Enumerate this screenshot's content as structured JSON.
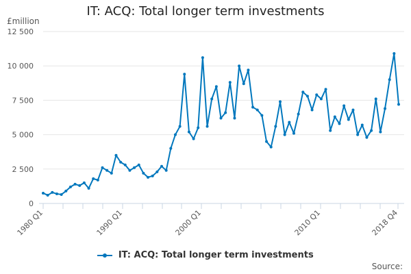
{
  "title": "IT: ACQ: Total longer term investments",
  "unit_label": "£million",
  "source_label": "Source:",
  "legend": {
    "label": "IT: ACQ: Total longer term investments",
    "color": "#0077bd"
  },
  "chart_data": {
    "type": "line",
    "title": "IT: ACQ: Total longer term investments",
    "xlabel": "",
    "ylabel": "£million",
    "ylim": [
      0,
      12500
    ],
    "yticks": [
      0,
      2500,
      5000,
      7500,
      10000,
      12500
    ],
    "ytick_labels": [
      "0",
      "2 500",
      "5 000",
      "7 500",
      "10 000",
      "12 500"
    ],
    "xtick_labels": [
      "1980 Q1",
      "1990 Q1",
      "2000 Q1",
      "2010 Q1",
      "2018 Q4"
    ],
    "grid": true,
    "legend_position": "bottom",
    "series": [
      {
        "name": "IT: ACQ: Total longer term investments",
        "color": "#0077bd",
        "x": [
          "1980 Q1",
          "1980 Q3",
          "1981 Q1",
          "1981 Q3",
          "1982 Q1",
          "1982 Q3",
          "1983 Q1",
          "1983 Q3",
          "1984 Q1",
          "1984 Q3",
          "1985 Q1",
          "1985 Q3",
          "1986 Q1",
          "1986 Q3",
          "1987 Q1",
          "1987 Q3",
          "1988 Q1",
          "1988 Q3",
          "1989 Q1",
          "1989 Q3",
          "1990 Q1",
          "1990 Q3",
          "1991 Q1",
          "1991 Q3",
          "1992 Q1",
          "1992 Q3",
          "1993 Q1",
          "1993 Q3",
          "1994 Q1",
          "1994 Q3",
          "1995 Q1",
          "1995 Q3",
          "1996 Q1",
          "1996 Q3",
          "1997 Q1",
          "1997 Q3",
          "1998 Q1",
          "1998 Q3",
          "1999 Q1",
          "1999 Q3",
          "2000 Q1",
          "2000 Q3",
          "2001 Q1",
          "2001 Q3",
          "2002 Q1",
          "2002 Q3",
          "2003 Q1",
          "2003 Q3",
          "2004 Q1",
          "2004 Q3",
          "2005 Q1",
          "2005 Q3",
          "2006 Q1",
          "2006 Q3",
          "2007 Q1",
          "2007 Q3",
          "2008 Q1",
          "2008 Q3",
          "2009 Q1",
          "2009 Q3",
          "2010 Q1",
          "2010 Q3",
          "2011 Q1",
          "2011 Q3",
          "2012 Q1",
          "2012 Q3",
          "2013 Q1",
          "2013 Q3",
          "2014 Q1",
          "2014 Q3",
          "2015 Q1",
          "2015 Q3",
          "2016 Q1",
          "2016 Q3",
          "2017 Q1",
          "2017 Q3",
          "2018 Q1",
          "2018 Q3",
          "2018 Q4"
        ],
        "values": [
          750,
          600,
          800,
          700,
          650,
          900,
          1200,
          1400,
          1300,
          1500,
          1100,
          1800,
          1700,
          2600,
          2400,
          2200,
          3500,
          3000,
          2800,
          2400,
          2600,
          2800,
          2200,
          1900,
          2000,
          2300,
          2700,
          2400,
          4000,
          5000,
          5600,
          9400,
          5200,
          4700,
          5500,
          10600,
          5600,
          7600,
          8500,
          6200,
          6600,
          8800,
          6200,
          10000,
          8700,
          9700,
          7000,
          6800,
          6400,
          4500,
          4100,
          5600,
          7400,
          5000,
          5900,
          5100,
          6500,
          8100,
          7800,
          6800,
          7900,
          7600,
          8300,
          5300,
          6300,
          5800,
          7100,
          6100,
          6800,
          5000,
          5700,
          4800,
          5300,
          7600,
          5200,
          6900,
          9000,
          10900,
          7200
        ]
      }
    ]
  }
}
